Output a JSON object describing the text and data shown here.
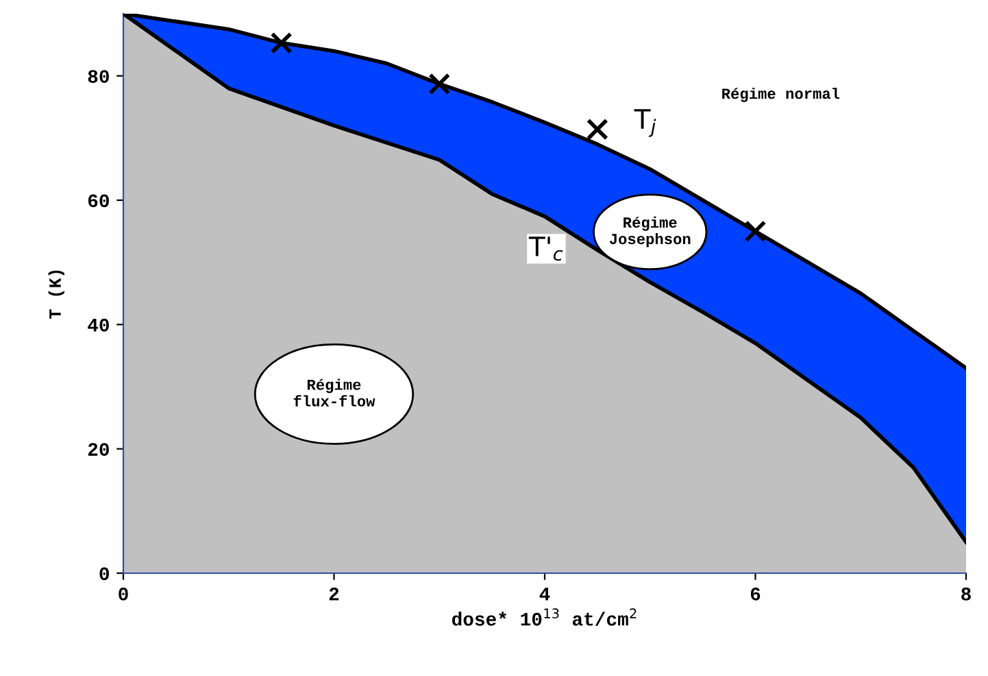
{
  "chart_data": {
    "type": "area",
    "xlabel": "dose* 10$^{13}$ at/cm$^{2}$",
    "ylabel": "T (K)",
    "xlim": [
      0,
      8
    ],
    "ylim": [
      0,
      90
    ],
    "xticks": [
      0,
      2,
      4,
      6,
      8
    ],
    "yticks": [
      0,
      20,
      40,
      60,
      80
    ],
    "grid": false,
    "legend": false,
    "series": [
      {
        "color": "#0040ff",
        "x": [
          0,
          1,
          1.5,
          2,
          2.5,
          3,
          3.5,
          4,
          4.5,
          5,
          5.5,
          6,
          6.5,
          7,
          7.5,
          8
        ],
        "values": [
          90,
          87.5,
          85.3,
          84,
          82,
          78.7,
          75.8,
          72.5,
          69,
          65,
          60,
          55,
          50,
          45,
          39,
          33
        ]
      },
      {
        "color": "#c0c0c0",
        "x": [
          0,
          1,
          2,
          3,
          3.5,
          4,
          4.5,
          5,
          5.5,
          6,
          6.5,
          7,
          7.5,
          8
        ],
        "values": [
          90,
          78,
          72,
          66.5,
          61,
          57.4,
          52,
          46.8,
          42,
          37,
          31,
          25,
          17,
          5
        ]
      },
      {
        "type": "scatter",
        "marker": "cross",
        "color": "#000000",
        "x": [
          1.5,
          3,
          4.5,
          6
        ],
        "values": [
          85.3,
          78.7,
          71.4,
          55
        ]
      }
    ],
    "annotations": [
      "T$_{j}$",
      "T'$_{c}$",
      "Régime normal",
      "Régime\nJosephson",
      "Régime\nflux-flow"
    ]
  }
}
